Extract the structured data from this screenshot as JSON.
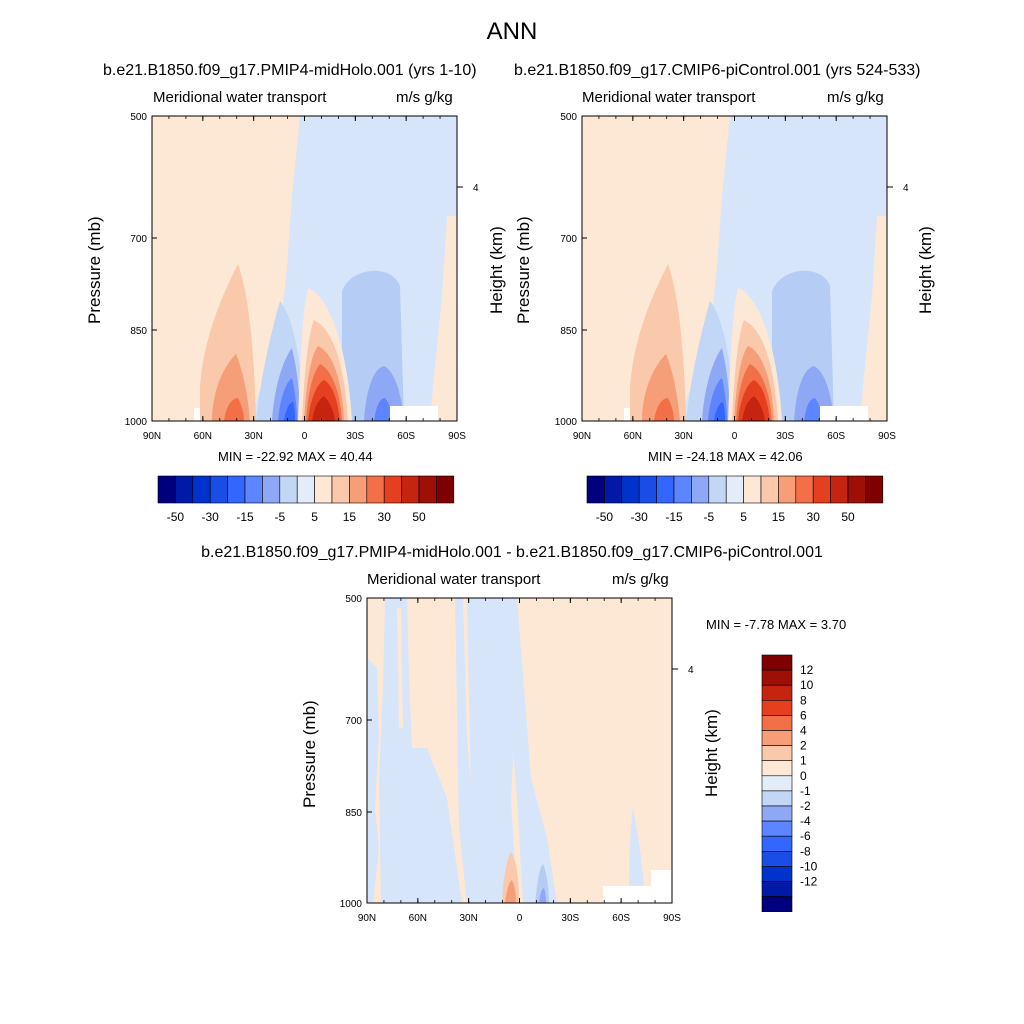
{
  "title": "ANN",
  "panels": [
    {
      "title": "b.e21.B1850.f09_g17.PMIP4-midHolo.001 (yrs 1-10)",
      "left_string": "Meridional water transport",
      "right_string": "m/s g/kg",
      "ylabel": "Pressure (mb)",
      "ylabel_right": "Height (km)",
      "minmax": "MIN = -22.92  MAX =  40.44"
    },
    {
      "title": "b.e21.B1850.f09_g17.CMIP6-piControl.001 (yrs 524-533)",
      "left_string": "Meridional water transport",
      "right_string": "m/s g/kg",
      "ylabel": "Pressure (mb)",
      "ylabel_right": "Height (km)",
      "minmax": "MIN = -24.18  MAX =  42.06"
    },
    {
      "title": "b.e21.B1850.f09_g17.PMIP4-midHolo.001 - b.e21.B1850.f09_g17.CMIP6-piControl.001",
      "left_string": "Meridional water transport",
      "right_string": "m/s g/kg",
      "ylabel": "Pressure (mb)",
      "ylabel_right": "Height (km)",
      "minmax": "MIN =  -7.78  MAX =   3.70"
    }
  ],
  "axes": {
    "x_ticks": [
      "90N",
      "60N",
      "30N",
      "0",
      "30S",
      "60S",
      "90S"
    ],
    "y_ticks": [
      "500",
      "700",
      "850",
      "1000"
    ],
    "y_right_ticks": [
      "4"
    ]
  },
  "colorbars": {
    "main": {
      "colors": [
        "#00007f",
        "#0019a6",
        "#0033cc",
        "#1a4de6",
        "#3366ff",
        "#5c85ff",
        "#8fa8f5",
        "#c2d6f5",
        "#e3edf9",
        "#fde8d6",
        "#fac8aa",
        "#f59e77",
        "#f26f47",
        "#e44020",
        "#c52410",
        "#9e0f05",
        "#7f0000"
      ],
      "labels": [
        "-50",
        "-30",
        "-15",
        "-5",
        "5",
        "15",
        "30",
        "50"
      ]
    },
    "diff": {
      "colors": [
        "#00007f",
        "#0019a6",
        "#0033cc",
        "#1a4de6",
        "#3366ff",
        "#5c85ff",
        "#8fa8f5",
        "#c2d6f5",
        "#e3edf9",
        "#fde8d6",
        "#fac8aa",
        "#f59e77",
        "#f26f47",
        "#e44020",
        "#c52410",
        "#9e0f05",
        "#7f0000"
      ],
      "labels": [
        "12",
        "10",
        "8",
        "6",
        "4",
        "2",
        "1",
        "0",
        "-1",
        "-2",
        "-4",
        "-6",
        "-8",
        "-10",
        "-12"
      ]
    }
  },
  "chart_data": [
    {
      "type": "heatmap",
      "title": "b.e21.B1850.f09_g17.PMIP4-midHolo.001 (yrs 1-10)",
      "variable": "Meridional water transport",
      "units": "m/s g/kg",
      "xlabel": "",
      "ylabel": "Pressure (mb)",
      "x": [
        "90N",
        "60N",
        "30N",
        "0",
        "30S",
        "60S",
        "90S"
      ],
      "y": [
        500,
        700,
        850,
        1000
      ],
      "min": -22.92,
      "max": 40.44,
      "contour_levels": [
        -50,
        -40,
        -30,
        -20,
        -15,
        -10,
        -5,
        -1,
        1,
        5,
        10,
        15,
        20,
        30,
        40,
        50
      ]
    },
    {
      "type": "heatmap",
      "title": "b.e21.B1850.f09_g17.CMIP6-piControl.001 (yrs 524-533)",
      "variable": "Meridional water transport",
      "units": "m/s g/kg",
      "xlabel": "",
      "ylabel": "Pressure (mb)",
      "x": [
        "90N",
        "60N",
        "30N",
        "0",
        "30S",
        "60S",
        "90S"
      ],
      "y": [
        500,
        700,
        850,
        1000
      ],
      "min": -24.18,
      "max": 42.06,
      "contour_levels": [
        -50,
        -40,
        -30,
        -20,
        -15,
        -10,
        -5,
        -1,
        1,
        5,
        10,
        15,
        20,
        30,
        40,
        50
      ]
    },
    {
      "type": "heatmap",
      "title": "b.e21.B1850.f09_g17.PMIP4-midHolo.001 - b.e21.B1850.f09_g17.CMIP6-piControl.001",
      "variable": "Meridional water transport",
      "units": "m/s g/kg",
      "xlabel": "",
      "ylabel": "Pressure (mb)",
      "x": [
        "90N",
        "60N",
        "30N",
        "0",
        "30S",
        "60S",
        "90S"
      ],
      "y": [
        500,
        700,
        850,
        1000
      ],
      "min": -7.78,
      "max": 3.7,
      "contour_levels": [
        -12,
        -10,
        -8,
        -6,
        -4,
        -2,
        -1,
        0,
        1,
        2,
        4,
        6,
        8,
        10,
        12
      ]
    }
  ]
}
